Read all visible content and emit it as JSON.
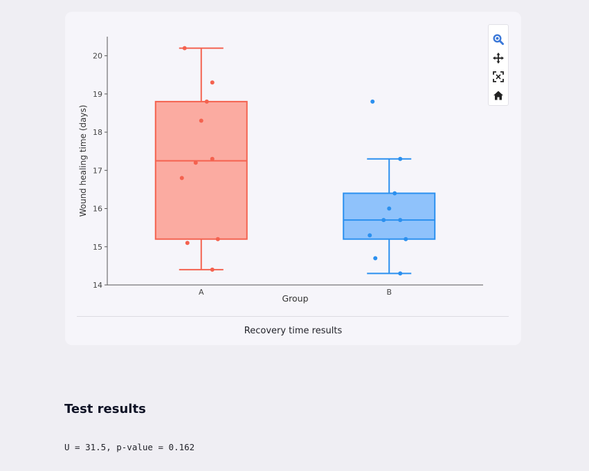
{
  "chart_panel": {
    "caption": "Recovery time results",
    "toolbar": [
      {
        "name": "zoom-icon",
        "color": "#3b78d8"
      },
      {
        "name": "pan-icon",
        "color": "#222222"
      },
      {
        "name": "autoscale-icon",
        "color": "#222222"
      },
      {
        "name": "reset-axes-home-icon",
        "color": "#222222"
      }
    ]
  },
  "chart_data": {
    "type": "box",
    "xlabel": "Group",
    "ylabel": "Wound healing time (days)",
    "categories": [
      "A",
      "B"
    ],
    "ylim": [
      14,
      20.5
    ],
    "yticks": [
      14,
      15,
      16,
      17,
      18,
      19,
      20
    ],
    "grid": false,
    "series": [
      {
        "category": "A",
        "color": "#f4624f",
        "fill": "#fbaba1",
        "q1": 15.2,
        "median": 17.25,
        "q3": 18.8,
        "lower_whisker": 14.4,
        "upper_whisker": 20.2,
        "points": [
          20.2,
          19.3,
          18.8,
          18.3,
          17.3,
          17.2,
          16.8,
          15.2,
          15.1,
          14.4
        ]
      },
      {
        "category": "B",
        "color": "#2b90ef",
        "fill": "#8fc2fb",
        "q1": 15.2,
        "median": 15.7,
        "q3": 16.4,
        "lower_whisker": 14.3,
        "upper_whisker": 17.3,
        "points": [
          18.8,
          17.3,
          16.4,
          16.0,
          15.7,
          15.7,
          15.3,
          15.2,
          14.7,
          14.3
        ]
      }
    ]
  },
  "results": {
    "heading": "Test results",
    "statistic_line": "U = 31.5, p-value = 0.162"
  }
}
